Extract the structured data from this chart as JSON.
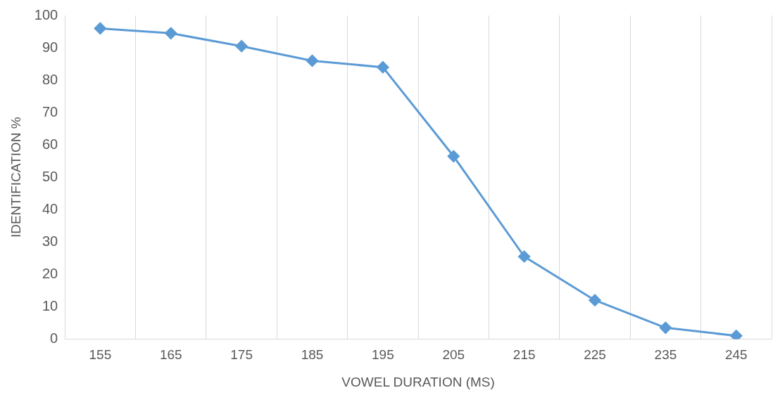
{
  "chart_data": {
    "type": "line",
    "xlabel": "VOWEL DURATION (MS)",
    "ylabel": "IDENTIFICATION %",
    "categories": [
      "155",
      "165",
      "175",
      "185",
      "195",
      "205",
      "215",
      "225",
      "235",
      "245"
    ],
    "series": [
      {
        "color": "#5b9bd5",
        "values": [
          96,
          94.5,
          90.5,
          86,
          84,
          56.5,
          25.5,
          12,
          3.5,
          1
        ]
      }
    ],
    "ylim": [
      0,
      100
    ],
    "yticks": [
      0,
      10,
      20,
      30,
      40,
      50,
      60,
      70,
      80,
      90,
      100
    ],
    "grid": "x",
    "legend": false,
    "marker": "diamond",
    "line_style": "solid"
  }
}
